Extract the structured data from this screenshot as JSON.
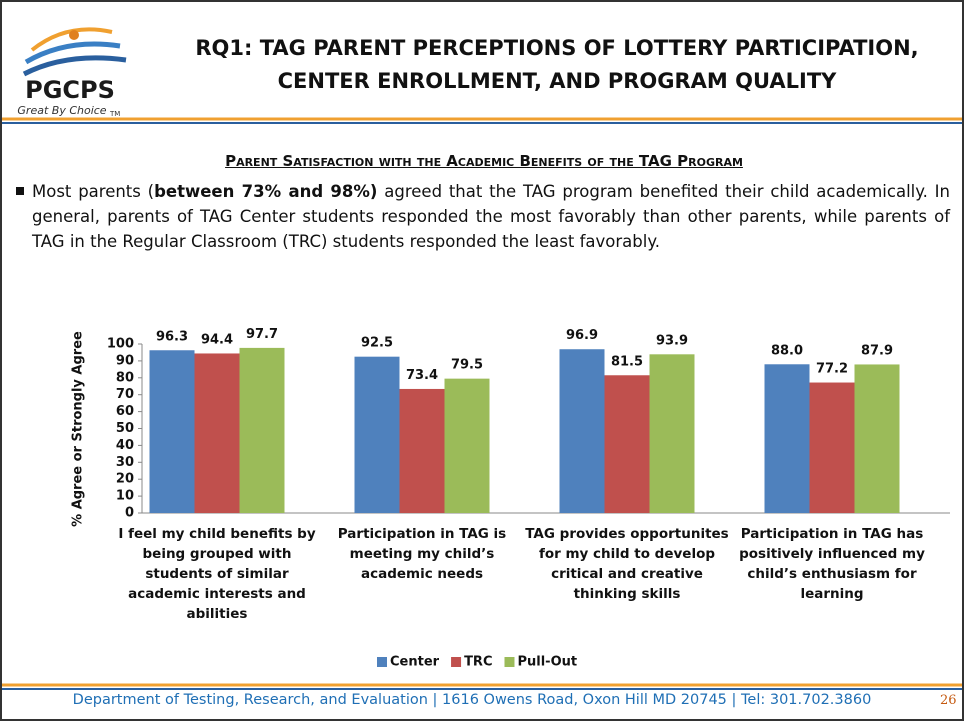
{
  "header": {
    "logo": {
      "name": "PGCPS",
      "tagline": "Great By Choice",
      "mark": "TM"
    },
    "title_lines": [
      "RQ1: TAG PARENT PERCEPTIONS OF LOTTERY PARTICIPATION,",
      "CENTER ENROLLMENT, AND PROGRAM QUALITY"
    ]
  },
  "section_heading": "Parent Satisfaction with the Academic Benefits of the TAG Program",
  "bullet": {
    "parts": [
      {
        "text": "Most parents (",
        "bold": false
      },
      {
        "text": "between 73% and 98%)",
        "bold": true
      },
      {
        "text": " agreed that the TAG program benefited their child academically. In general, parents of TAG Center students responded the most favorably than other parents, while parents of TAG in the Regular Classroom (TRC) students responded the least favorably.",
        "bold": false
      }
    ]
  },
  "chart_data": {
    "type": "bar",
    "y_label": "% Agree or Strongly Agree",
    "categories": [
      "I feel my child benefits by being grouped with students of similar academic interests and abilities",
      "Participation in TAG is meeting my child’s academic needs",
      "TAG provides opportunites for my child to develop critical and creative thinking skills",
      "Participation in TAG has positively influenced my child’s enthusiasm for learning"
    ],
    "series": [
      {
        "name": "Center",
        "color": "#4f81bd",
        "values": [
          96.3,
          92.5,
          96.9,
          88.0
        ],
        "value_labels": [
          "96.3",
          "92.5",
          "96.9",
          "88.0"
        ]
      },
      {
        "name": "TRC",
        "color": "#c0504d",
        "values": [
          94.4,
          73.4,
          81.5,
          77.2
        ]
      },
      {
        "name": "Pull-Out",
        "color": "#9bbb59",
        "values": [
          97.7,
          79.5,
          93.9,
          87.9
        ]
      }
    ],
    "ylim": [
      0,
      100
    ],
    "yticks": [
      0,
      10,
      20,
      30,
      40,
      50,
      60,
      70,
      80,
      90,
      100
    ],
    "grid": false,
    "legend": "bottom"
  },
  "footer": {
    "text": "Department of Testing, Research, and Evaluation | 1616 Owens Road, Oxon Hill MD 20745  | Tel: 301.702.3860",
    "page_number": 26
  }
}
